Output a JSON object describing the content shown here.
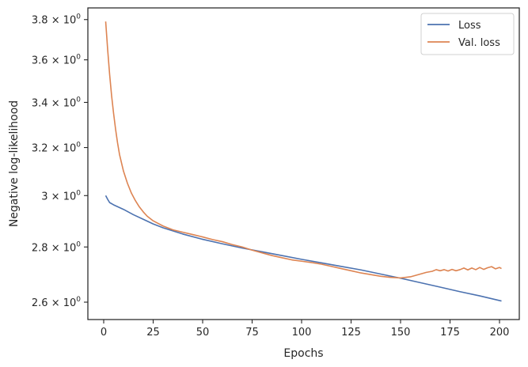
{
  "chart_data": {
    "type": "line",
    "title": "",
    "xlabel": "Epochs",
    "ylabel": "Negative log-likelihood",
    "xlim": [
      -8,
      210
    ],
    "ylim": [
      2.54,
      3.86
    ],
    "yscale": "log",
    "grid": false,
    "legend_position": "top-right",
    "x_ticks": [
      0,
      25,
      50,
      75,
      100,
      125,
      150,
      175,
      200
    ],
    "y_ticks": [
      2.6,
      2.8,
      3.0,
      3.2,
      3.4,
      3.6,
      3.8
    ],
    "y_tick_labels": [
      {
        "mantissa": "2.6",
        "base": "10",
        "exp": "0"
      },
      {
        "mantissa": "2.8",
        "base": "10",
        "exp": "0"
      },
      {
        "mantissa": "3",
        "base": "10",
        "exp": "0"
      },
      {
        "mantissa": "3.2",
        "base": "10",
        "exp": "0"
      },
      {
        "mantissa": "3.4",
        "base": "10",
        "exp": "0"
      },
      {
        "mantissa": "3.6",
        "base": "10",
        "exp": "0"
      },
      {
        "mantissa": "3.8",
        "base": "10",
        "exp": "0"
      }
    ],
    "series": [
      {
        "name": "Loss",
        "color": "#4c72b0",
        "x": [
          1,
          2,
          3,
          5,
          10,
          15,
          20,
          25,
          30,
          40,
          50,
          60,
          70,
          80,
          90,
          100,
          110,
          120,
          130,
          140,
          150,
          160,
          170,
          180,
          190,
          201
        ],
        "y": [
          3.0,
          2.985,
          2.972,
          2.963,
          2.945,
          2.924,
          2.906,
          2.888,
          2.873,
          2.849,
          2.829,
          2.812,
          2.796,
          2.782,
          2.768,
          2.754,
          2.741,
          2.728,
          2.715,
          2.7,
          2.685,
          2.669,
          2.653,
          2.637,
          2.622,
          2.604
        ]
      },
      {
        "name": "Val. loss",
        "color": "#dd8452",
        "x": [
          1,
          2,
          3,
          4,
          5,
          6,
          7,
          8,
          10,
          12,
          14,
          16,
          18,
          20,
          22,
          25,
          30,
          35,
          40,
          45,
          50,
          55,
          60,
          65,
          70,
          75,
          80,
          85,
          90,
          95,
          100,
          105,
          110,
          115,
          120,
          125,
          130,
          135,
          140,
          145,
          150,
          155,
          160,
          163,
          166,
          168,
          170,
          172,
          174,
          176,
          178,
          180,
          182,
          184,
          186,
          188,
          190,
          192,
          194,
          196,
          198,
          200,
          201
        ],
        "y": [
          3.79,
          3.65,
          3.53,
          3.43,
          3.35,
          3.28,
          3.22,
          3.17,
          3.1,
          3.05,
          3.01,
          2.98,
          2.955,
          2.935,
          2.918,
          2.9,
          2.88,
          2.865,
          2.856,
          2.847,
          2.838,
          2.828,
          2.82,
          2.809,
          2.8,
          2.788,
          2.778,
          2.768,
          2.76,
          2.752,
          2.747,
          2.742,
          2.736,
          2.728,
          2.72,
          2.712,
          2.704,
          2.698,
          2.692,
          2.688,
          2.686,
          2.69,
          2.7,
          2.706,
          2.71,
          2.716,
          2.712,
          2.716,
          2.711,
          2.717,
          2.712,
          2.716,
          2.722,
          2.715,
          2.722,
          2.716,
          2.724,
          2.717,
          2.723,
          2.727,
          2.719,
          2.724,
          2.72
        ]
      }
    ]
  }
}
